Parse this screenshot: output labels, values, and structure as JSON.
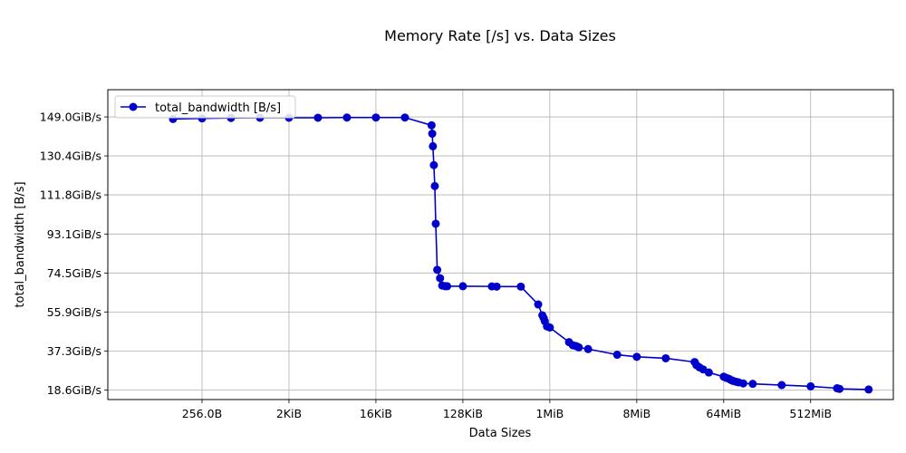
{
  "chart_data": {
    "type": "line",
    "title": "Memory Rate [/s] vs. Data Sizes",
    "xlabel": "Data Sizes",
    "ylabel": "total_bandwidth [B/s]",
    "x_scale": "log2",
    "x_unit": "bytes",
    "x_ticks": [
      {
        "value": 256,
        "label": "256.0B"
      },
      {
        "value": 2048,
        "label": "2KiB"
      },
      {
        "value": 16384,
        "label": "16KiB"
      },
      {
        "value": 131072,
        "label": "128KiB"
      },
      {
        "value": 1048576,
        "label": "1MiB"
      },
      {
        "value": 8388608,
        "label": "8MiB"
      },
      {
        "value": 67108864,
        "label": "64MiB"
      },
      {
        "value": 536870912,
        "label": "512MiB"
      }
    ],
    "xlim": [
      26.9,
      3875000000
    ],
    "y_unit": "GiB/s",
    "y_ticks": [
      {
        "value": 18.6,
        "label": "18.6GiB/s"
      },
      {
        "value": 37.3,
        "label": "37.3GiB/s"
      },
      {
        "value": 55.9,
        "label": "55.9GiB/s"
      },
      {
        "value": 74.5,
        "label": "74.5GiB/s"
      },
      {
        "value": 93.1,
        "label": "93.1GiB/s"
      },
      {
        "value": 111.8,
        "label": "111.8GiB/s"
      },
      {
        "value": 130.4,
        "label": "130.4GiB/s"
      },
      {
        "value": 149.0,
        "label": "149.0GiB/s"
      }
    ],
    "ylim": [
      14.1,
      162.0
    ],
    "grid": true,
    "legend": {
      "placement": "upper-left"
    },
    "series": [
      {
        "name": "total_bandwidth [B/s]",
        "color": "#0000cc",
        "marker": "circle",
        "x": [
          128,
          256,
          512,
          1024,
          2048,
          4096,
          8192,
          16384,
          32768,
          62000,
          63000,
          64000,
          65500,
          67000,
          68500,
          71000,
          76000,
          80000,
          86000,
          90000,
          131072,
          262144,
          294000,
          524288,
          794000,
          877000,
          905000,
          930000,
          980000,
          1048576,
          1660000,
          1820000,
          1970000,
          2097152,
          2620000,
          5250000,
          8388608,
          16777216,
          33500000,
          35000000,
          37500000,
          41000000,
          47000000,
          67108864,
          71000000,
          76000000,
          80000000,
          84000000,
          90000000,
          96000000,
          107000000,
          134217728,
          268435456,
          536870912,
          1010000000,
          1070000000,
          2147483648
        ],
        "y": [
          148.0,
          148.3,
          148.5,
          148.6,
          148.6,
          148.6,
          148.7,
          148.7,
          148.7,
          145.0,
          141.0,
          135.0,
          126.0,
          116.0,
          98.0,
          76.0,
          72.0,
          68.5,
          68.2,
          68.2,
          68.2,
          68.1,
          68.0,
          68.0,
          59.5,
          54.3,
          53.0,
          51.5,
          49.0,
          48.5,
          41.5,
          40.0,
          39.6,
          39.0,
          38.2,
          35.5,
          34.5,
          33.8,
          32.0,
          30.5,
          29.5,
          28.5,
          27.0,
          25.0,
          24.5,
          24.0,
          23.4,
          23.0,
          22.6,
          22.3,
          21.8,
          21.6,
          21.0,
          20.4,
          19.5,
          19.2,
          18.9
        ]
      }
    ]
  }
}
